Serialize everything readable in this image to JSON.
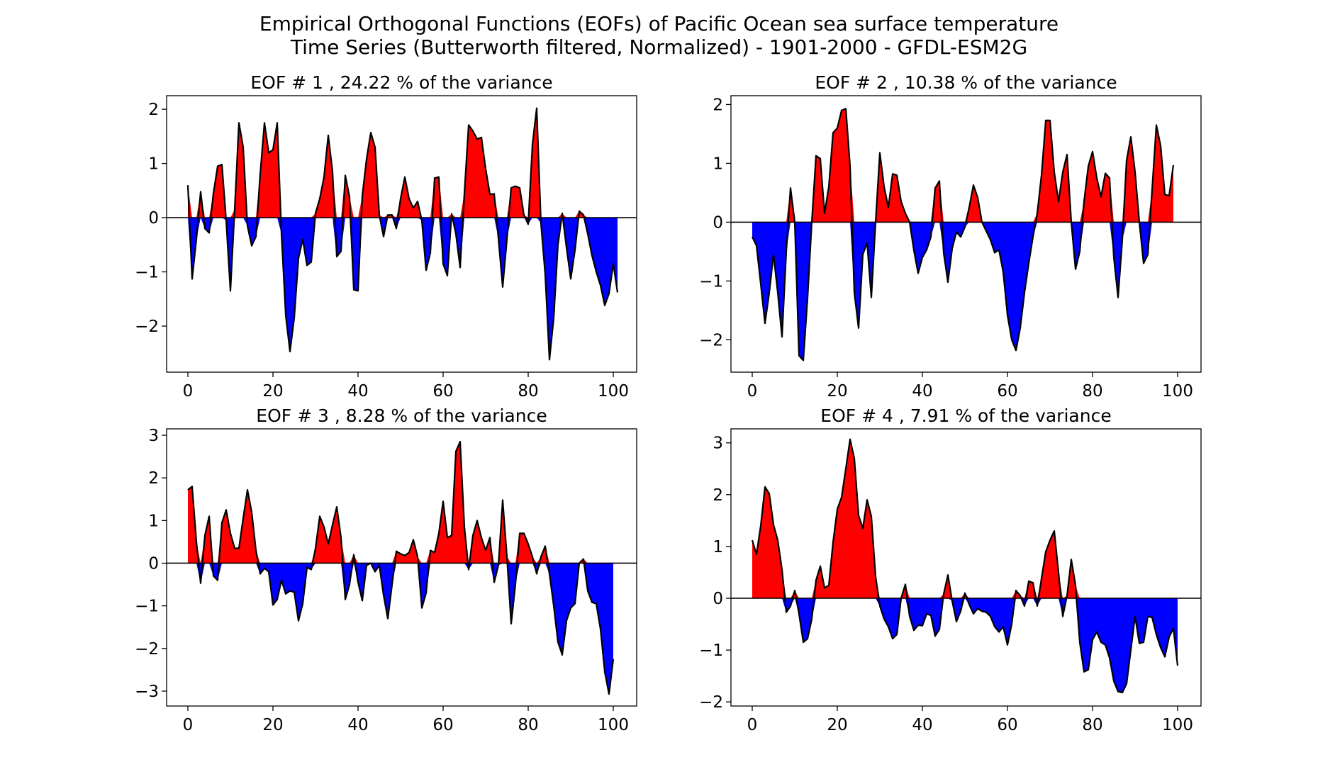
{
  "figure": {
    "title_line1": "Empirical Orthogonal Functions (EOFs) of Pacific Ocean sea surface temperature",
    "title_line2": "Time Series (Butterworth filtered, Normalized) - 1901-2000 - GFDL-ESM2G"
  },
  "colors": {
    "positive": "#ff0000",
    "negative": "#0000ff",
    "line": "#000000",
    "zero_line": "#000000"
  },
  "chart_data": [
    {
      "type": "area",
      "title": "EOF # 1  ,  24.22 % of the variance",
      "xlabel": "",
      "ylabel": "",
      "xlim": [
        -5,
        105.5
      ],
      "ylim": [
        -2.85,
        2.25
      ],
      "xticks": [
        0,
        20,
        40,
        60,
        80,
        100
      ],
      "yticks": [
        -2,
        -1,
        0,
        1,
        2
      ],
      "x_start": 0,
      "values": [
        0.6,
        -1.13,
        -0.4,
        0.48,
        -0.2,
        -0.28,
        0.45,
        0.95,
        0.98,
        -0.05,
        -1.35,
        0.15,
        1.75,
        1.3,
        -0.15,
        -0.52,
        -0.35,
        0.8,
        1.75,
        1.2,
        1.25,
        1.75,
        -0.3,
        -1.8,
        -2.47,
        -1.85,
        -0.75,
        -0.4,
        -0.88,
        -0.82,
        0.08,
        0.35,
        0.75,
        1.52,
        0.85,
        -0.72,
        -0.62,
        0.78,
        0.38,
        -1.33,
        -1.35,
        0.4,
        1.08,
        1.57,
        1.3,
        0.05,
        -0.35,
        0.05,
        0.05,
        -0.2,
        0.35,
        0.75,
        0.35,
        0.18,
        0.3,
        -0.05,
        -0.97,
        -0.65,
        0.73,
        0.75,
        -0.85,
        -1.07,
        0.07,
        -0.3,
        -0.92,
        0.45,
        1.71,
        1.6,
        1.45,
        1.48,
        0.9,
        0.43,
        0.44,
        -0.38,
        -1.28,
        -0.4,
        0.55,
        0.58,
        0.55,
        0.05,
        -0.12,
        1.35,
        2.02,
        -0.1,
        -1.05,
        -2.62,
        -1.85,
        -0.5,
        0.08,
        -0.55,
        -1.13,
        -0.6,
        0.12,
        0.05,
        -0.3,
        -0.7,
        -1.0,
        -1.25,
        -1.62,
        -1.4,
        -0.85,
        -1.38
      ]
    },
    {
      "type": "area",
      "title": "EOF # 2  ,  10.38 % of the variance",
      "xlabel": "",
      "ylabel": "",
      "xlim": [
        -5,
        105.5
      ],
      "ylim": [
        -2.55,
        2.15
      ],
      "xticks": [
        0,
        20,
        40,
        60,
        80,
        100
      ],
      "yticks": [
        -2,
        -1,
        0,
        1,
        2
      ],
      "x_start": 0,
      "values": [
        -0.25,
        -0.4,
        -1.05,
        -1.72,
        -1.2,
        -0.55,
        -1.2,
        -1.95,
        -0.5,
        0.58,
        0.0,
        -2.27,
        -2.35,
        -1.3,
        0.0,
        1.13,
        1.08,
        0.15,
        0.6,
        1.52,
        1.6,
        1.9,
        1.93,
        0.95,
        -1.2,
        -1.8,
        -0.55,
        -0.35,
        -1.28,
        0.0,
        1.18,
        0.6,
        0.25,
        0.82,
        0.8,
        0.35,
        0.15,
        0.0,
        -0.48,
        -0.87,
        -0.6,
        -0.47,
        -0.25,
        0.58,
        0.7,
        -0.52,
        -1.02,
        -0.45,
        -0.17,
        -0.25,
        -0.08,
        0.25,
        0.63,
        0.42,
        0.0,
        -0.15,
        -0.3,
        -0.52,
        -0.47,
        -0.85,
        -1.58,
        -2.0,
        -2.18,
        -1.8,
        -1.2,
        -0.7,
        -0.25,
        0.15,
        0.8,
        1.73,
        1.73,
        0.85,
        0.35,
        0.85,
        1.15,
        0.0,
        -0.8,
        -0.5,
        0.35,
        0.95,
        1.2,
        0.75,
        0.43,
        0.83,
        0.75,
        -0.6,
        -1.28,
        -0.3,
        1.05,
        1.45,
        0.85,
        0.0,
        -0.7,
        -0.55,
        0.55,
        1.65,
        1.3,
        0.47,
        0.45,
        0.97
      ]
    },
    {
      "type": "area",
      "title": "EOF # 3  ,  8.28 % of the variance",
      "xlabel": "",
      "ylabel": "",
      "xlim": [
        -5,
        105.5
      ],
      "ylim": [
        -3.35,
        3.15
      ],
      "xticks": [
        0,
        20,
        40,
        60,
        80,
        100
      ],
      "yticks": [
        -3,
        -2,
        -1,
        0,
        1,
        2,
        3
      ],
      "x_start": 0,
      "values": [
        1.72,
        1.8,
        0.5,
        -0.47,
        0.65,
        1.1,
        -0.3,
        -0.4,
        0.95,
        1.25,
        0.7,
        0.35,
        0.35,
        1.05,
        1.72,
        1.2,
        0.3,
        -0.25,
        -0.12,
        -0.2,
        -0.98,
        -0.85,
        -0.4,
        -0.72,
        -0.65,
        -0.68,
        -1.35,
        -0.95,
        -0.1,
        -0.15,
        0.35,
        1.1,
        0.85,
        0.45,
        0.9,
        1.32,
        0.6,
        -0.85,
        -0.5,
        0.2,
        -0.45,
        -0.88,
        -0.05,
        0.0,
        -0.2,
        -0.05,
        -0.75,
        -1.3,
        -0.5,
        0.28,
        0.22,
        0.18,
        0.25,
        0.55,
        0.15,
        -1.05,
        -0.7,
        0.3,
        0.25,
        0.7,
        1.45,
        0.6,
        0.65,
        2.62,
        2.85,
        0.85,
        -0.15,
        0.65,
        1.0,
        0.6,
        0.3,
        0.6,
        -0.45,
        -0.05,
        1.48,
        0.15,
        -1.42,
        -0.5,
        0.7,
        0.7,
        0.45,
        0.15,
        -0.25,
        0.15,
        0.4,
        -0.25,
        -1.0,
        -1.85,
        -2.15,
        -1.35,
        -1.05,
        -0.95,
        0.0,
        0.1,
        -0.65,
        -0.92,
        -0.95,
        -1.55,
        -2.55,
        -3.07,
        -2.25
      ]
    },
    {
      "type": "area",
      "title": "EOF # 4  ,  7.91 % of the variance",
      "xlabel": "",
      "ylabel": "",
      "xlim": [
        -5,
        105.5
      ],
      "ylim": [
        -2.08,
        3.27
      ],
      "xticks": [
        0,
        20,
        40,
        60,
        80,
        100
      ],
      "yticks": [
        -2,
        -1,
        0,
        1,
        2,
        3
      ],
      "x_start": 0,
      "values": [
        1.12,
        0.85,
        1.4,
        2.15,
        2.02,
        1.42,
        1.12,
        0.55,
        -0.27,
        -0.15,
        0.15,
        -0.3,
        -0.85,
        -0.78,
        -0.4,
        0.35,
        0.62,
        0.2,
        0.25,
        1.08,
        1.72,
        1.95,
        2.5,
        3.07,
        2.7,
        1.6,
        1.35,
        1.9,
        1.58,
        0.42,
        -0.15,
        -0.4,
        -0.55,
        -0.78,
        -0.7,
        0.0,
        0.27,
        -0.35,
        -0.62,
        -0.52,
        -0.53,
        -0.3,
        -0.33,
        -0.73,
        -0.6,
        0.08,
        0.45,
        -0.05,
        -0.45,
        -0.25,
        0.1,
        -0.12,
        -0.3,
        -0.2,
        -0.25,
        -0.27,
        -0.35,
        -0.55,
        -0.65,
        -0.55,
        -0.9,
        -0.5,
        0.15,
        0.05,
        -0.15,
        0.33,
        0.3,
        -0.15,
        0.38,
        0.9,
        1.12,
        1.3,
        0.5,
        -0.35,
        0.05,
        0.75,
        0.25,
        -0.85,
        -1.42,
        -1.38,
        -0.8,
        -0.65,
        -0.85,
        -0.9,
        -1.15,
        -1.6,
        -1.8,
        -1.82,
        -1.65,
        -1.0,
        -0.35,
        -0.87,
        -0.85,
        -0.35,
        -0.37,
        -0.7,
        -0.95,
        -1.13,
        -0.75,
        -0.58,
        -1.3
      ]
    }
  ]
}
